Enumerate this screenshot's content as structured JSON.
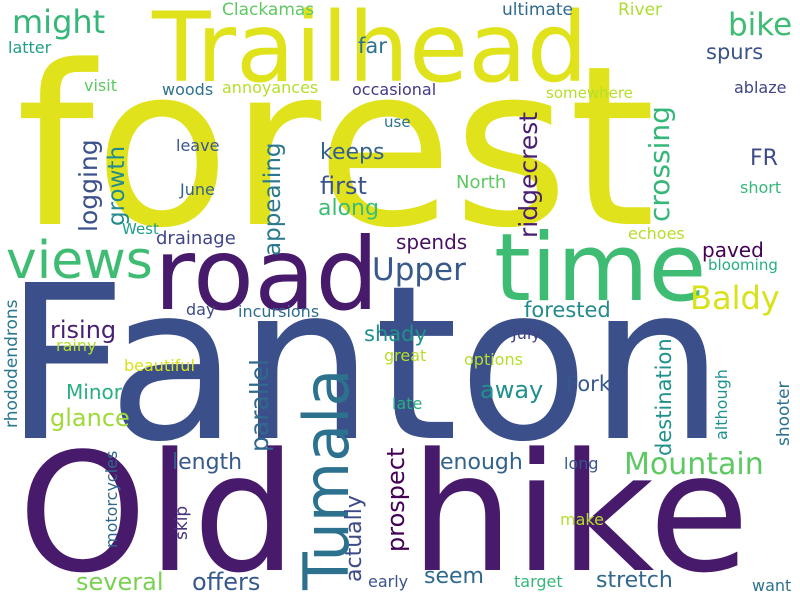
{
  "words": [
    {
      "text": "forest",
      "color": "#e0e31b",
      "rotate": false
    },
    {
      "text": "Fanton",
      "color": "#3b4f8a",
      "rotate": false
    },
    {
      "text": "Old",
      "color": "#481a6c",
      "rotate": false
    },
    {
      "text": "hike",
      "color": "#481a6c",
      "rotate": false
    },
    {
      "text": "Trailhead",
      "color": "#e0e31b",
      "rotate": false
    },
    {
      "text": "road",
      "color": "#481a6c",
      "rotate": false
    },
    {
      "text": "time",
      "color": "#3fbc73",
      "rotate": false
    },
    {
      "text": "Tumala",
      "color": "#2c728e",
      "rotate": true
    },
    {
      "text": "views",
      "color": "#3fbc73",
      "rotate": false
    },
    {
      "text": "Mountain",
      "color": "#5ec962",
      "rotate": false
    },
    {
      "text": "Upper",
      "color": "#38598c",
      "rotate": false
    },
    {
      "text": "Baldy",
      "color": "#d8e219",
      "rotate": false
    },
    {
      "text": "might",
      "color": "#35b779",
      "rotate": false
    },
    {
      "text": "bike",
      "color": "#3fbc73",
      "rotate": false
    },
    {
      "text": "ridgecrest",
      "color": "#481f70",
      "rotate": true
    },
    {
      "text": "crossing",
      "color": "#35b779",
      "rotate": true
    },
    {
      "text": "logging",
      "color": "#3b528b",
      "rotate": true
    },
    {
      "text": "growth",
      "color": "#238a8d",
      "rotate": true
    },
    {
      "text": "appealing",
      "color": "#2a788e",
      "rotate": true
    },
    {
      "text": "parallel",
      "color": "#31688e",
      "rotate": true
    },
    {
      "text": "prospect",
      "color": "#440154",
      "rotate": true
    },
    {
      "text": "destination",
      "color": "#21918c",
      "rotate": true
    },
    {
      "text": "actually",
      "color": "#3e4a89",
      "rotate": true
    },
    {
      "text": "rhododendrons",
      "color": "#2a788e",
      "rotate": true
    },
    {
      "text": "motorcycles",
      "color": "#31688e",
      "rotate": true
    },
    {
      "text": "although",
      "color": "#21918c",
      "rotate": true
    },
    {
      "text": "shooter",
      "color": "#2c728e",
      "rotate": true
    },
    {
      "text": "skip",
      "color": "#46337e",
      "rotate": true
    },
    {
      "text": "keeps",
      "color": "#34618d",
      "rotate": false
    },
    {
      "text": "first",
      "color": "#3b528b",
      "rotate": false
    },
    {
      "text": "along",
      "color": "#3fbc73",
      "rotate": false
    },
    {
      "text": "far",
      "color": "#2c728e",
      "rotate": false
    },
    {
      "text": "spurs",
      "color": "#3b528b",
      "rotate": false
    },
    {
      "text": "FR",
      "color": "#3e4a89",
      "rotate": false
    },
    {
      "text": "paved",
      "color": "#440154",
      "rotate": false
    },
    {
      "text": "spends",
      "color": "#471365",
      "rotate": false
    },
    {
      "text": "forested",
      "color": "#238a8d",
      "rotate": false
    },
    {
      "text": "rising",
      "color": "#482173",
      "rotate": false
    },
    {
      "text": "shady",
      "color": "#21918c",
      "rotate": false
    },
    {
      "text": "drainage",
      "color": "#404588",
      "rotate": false
    },
    {
      "text": "Minor",
      "color": "#29af7f",
      "rotate": false
    },
    {
      "text": "glance",
      "color": "#a0da39",
      "rotate": false
    },
    {
      "text": "away",
      "color": "#21918c",
      "rotate": false
    },
    {
      "text": "Fork",
      "color": "#38598c",
      "rotate": false
    },
    {
      "text": "length",
      "color": "#38598c",
      "rotate": false
    },
    {
      "text": "enough",
      "color": "#33638d",
      "rotate": false
    },
    {
      "text": "several",
      "color": "#7ad151",
      "rotate": false
    },
    {
      "text": "offers",
      "color": "#38598c",
      "rotate": false
    },
    {
      "text": "seem",
      "color": "#31688e",
      "rotate": false
    },
    {
      "text": "stretch",
      "color": "#31688e",
      "rotate": false
    },
    {
      "text": "Clackamas",
      "color": "#5ec962",
      "rotate": false
    },
    {
      "text": "ultimate",
      "color": "#306a8e",
      "rotate": false
    },
    {
      "text": "River",
      "color": "#addc30",
      "rotate": false
    },
    {
      "text": "latter",
      "color": "#1f9e89",
      "rotate": false
    },
    {
      "text": "visit",
      "color": "#5ec962",
      "rotate": false
    },
    {
      "text": "woods",
      "color": "#2c728e",
      "rotate": false
    },
    {
      "text": "annoyances",
      "color": "#b5de2b",
      "rotate": false
    },
    {
      "text": "occasional",
      "color": "#443983",
      "rotate": false
    },
    {
      "text": "somewhere",
      "color": "#b5de2b",
      "rotate": false
    },
    {
      "text": "ablaze",
      "color": "#414487",
      "rotate": false
    },
    {
      "text": "use",
      "color": "#2c728e",
      "rotate": false
    },
    {
      "text": "leave",
      "color": "#39568c",
      "rotate": false
    },
    {
      "text": "June",
      "color": "#33638d",
      "rotate": false
    },
    {
      "text": "North",
      "color": "#5ec962",
      "rotate": false
    },
    {
      "text": "short",
      "color": "#35b779",
      "rotate": false
    },
    {
      "text": "West",
      "color": "#1f9e89",
      "rotate": false
    },
    {
      "text": "echoes",
      "color": "#b5de2b",
      "rotate": false
    },
    {
      "text": "blooming",
      "color": "#26ad81",
      "rotate": false
    },
    {
      "text": "day",
      "color": "#3e4a89",
      "rotate": false
    },
    {
      "text": "incursions",
      "color": "#2e6e8e",
      "rotate": false
    },
    {
      "text": "rainy",
      "color": "#b5de2b",
      "rotate": false
    },
    {
      "text": "July",
      "color": "#414487",
      "rotate": false
    },
    {
      "text": "beautiful",
      "color": "#d8e219",
      "rotate": false
    },
    {
      "text": "great",
      "color": "#b5de2b",
      "rotate": false
    },
    {
      "text": "options",
      "color": "#b5de2b",
      "rotate": false
    },
    {
      "text": "late",
      "color": "#29af7f",
      "rotate": false
    },
    {
      "text": "long",
      "color": "#39568c",
      "rotate": false
    },
    {
      "text": "make",
      "color": "#b5de2b",
      "rotate": false
    },
    {
      "text": "early",
      "color": "#3b528b",
      "rotate": false
    },
    {
      "text": "target",
      "color": "#35b779",
      "rotate": false
    },
    {
      "text": "want",
      "color": "#2c728e",
      "rotate": false
    }
  ]
}
